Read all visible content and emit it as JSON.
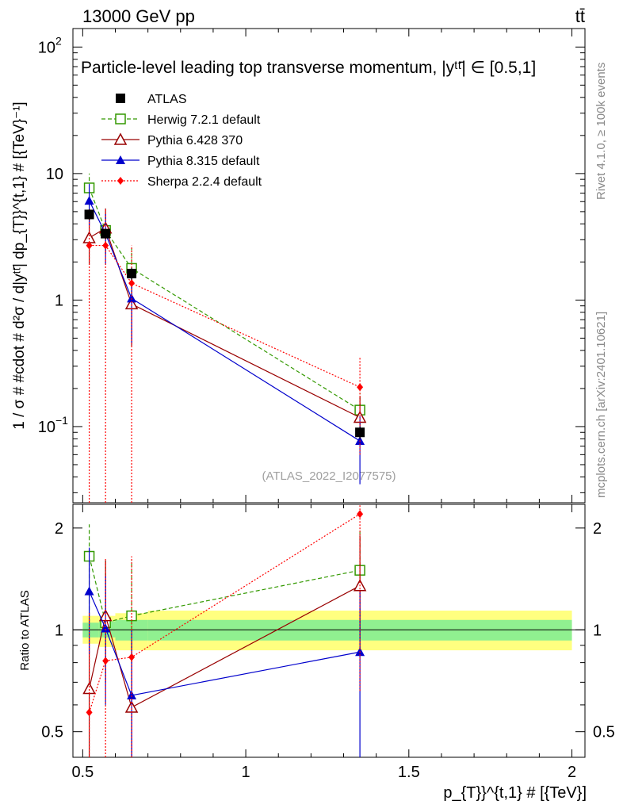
{
  "header": {
    "energy": "13000 GeV pp",
    "process": "tt̄"
  },
  "side": {
    "rivet": "Rivet 4.1.0, ≥ 100k events",
    "source": "mcplots.cern.ch [arXiv:2401.10621]"
  },
  "chart_data": {
    "type": "scatter",
    "title": "Particle-level leading top transverse momentum, |y^{tt̄}| ∈ [0.5,1]",
    "title_text": "Particle-level leading top transverse momentum, |yᵗᵗ̄| ∈ [0.5,1]",
    "watermark": "(ATLAS_2022_I2077575)",
    "xlabel": "p_{T}^{t,1} # [{TeV}]",
    "xlabel_text": "p_{T}}^{t,1} # [{TeV}]",
    "ylabel": "1 / σ # #cdot # d²σ / d|y^{tt̄}| dp_{T}^{t,1} # [{TeV}⁻¹]",
    "ylabel_text": "1 / σ # #cdot # d²σ / d|yᵗᵗ̄| dp_{T}}^{t,1} # [{TeV}⁻¹]",
    "ratio_ylabel": "Ratio to ATLAS",
    "xlim": [
      0.47,
      2.04
    ],
    "main_ylim": [
      0.025,
      140
    ],
    "main_yscale": "log",
    "ratio_ylim": [
      0.42,
      2.35
    ],
    "ratio_yscale": "log",
    "x_ticks": [
      {
        "value": 0.5,
        "label": "0.5"
      },
      {
        "value": 1,
        "label": "1"
      },
      {
        "value": 1.5,
        "label": "1.5"
      },
      {
        "value": 2,
        "label": "2"
      }
    ],
    "main_y_ticks": [
      {
        "value": 0.1,
        "label": "10",
        "exp": "−1"
      },
      {
        "value": 1,
        "label": "1",
        "exp": ""
      },
      {
        "value": 10,
        "label": "10",
        "exp": ""
      },
      {
        "value": 100,
        "label": "10",
        "exp": "2"
      }
    ],
    "ratio_y_ticks": [
      {
        "value": 0.5,
        "label": "0.5"
      },
      {
        "value": 1,
        "label": "1"
      },
      {
        "value": 2,
        "label": "2"
      }
    ],
    "bins": [
      [
        0.5,
        0.55
      ],
      [
        0.55,
        0.6
      ],
      [
        0.6,
        0.7
      ],
      [
        0.7,
        2.0
      ]
    ],
    "band_stat": [
      [
        0.95,
        1.05
      ],
      [
        0.95,
        1.06
      ],
      [
        0.93,
        1.07
      ],
      [
        0.93,
        1.07
      ]
    ],
    "band_total": [
      [
        0.91,
        1.1
      ],
      [
        0.89,
        1.1
      ],
      [
        0.87,
        1.12
      ],
      [
        0.87,
        1.14
      ]
    ],
    "series": [
      {
        "name": "ATLAS",
        "color": "#000000",
        "marker": "square-filled",
        "line": "none",
        "x": [
          0.52,
          0.57,
          0.65,
          1.35
        ],
        "y": [
          4.75,
          3.35,
          1.62,
          0.09
        ],
        "y_lo": [
          4.3,
          3.05,
          1.45,
          0.08
        ],
        "y_hi": [
          5.2,
          3.65,
          1.8,
          0.1
        ],
        "ratio": [
          1,
          1,
          1,
          1
        ],
        "ratio_lo": [
          1,
          1,
          1,
          1
        ],
        "ratio_hi": [
          1,
          1,
          1,
          1
        ]
      },
      {
        "name": "Herwig 7.2.1 default",
        "color": "#339900",
        "marker": "square-open",
        "line": "dashed",
        "x": [
          0.52,
          0.57,
          0.65,
          1.35
        ],
        "y": [
          7.7,
          3.55,
          1.78,
          0.135
        ],
        "y_lo": [
          4.9,
          2.4,
          1.1,
          0.09
        ],
        "y_hi": [
          10.0,
          4.9,
          2.6,
          0.185
        ],
        "ratio": [
          1.65,
          1.05,
          1.1,
          1.5
        ],
        "ratio_lo": [
          1.05,
          0.75,
          0.8,
          1.0
        ],
        "ratio_hi": [
          2.05,
          1.6,
          1.6,
          2.0
        ]
      },
      {
        "name": "Pythia 6.428 370",
        "color": "#990000",
        "marker": "triangle-open",
        "line": "solid",
        "x": [
          0.52,
          0.57,
          0.65,
          1.35
        ],
        "y": [
          3.1,
          3.7,
          0.93,
          0.118
        ],
        "y_lo": [
          1.9,
          2.3,
          0.43,
          0.075
        ],
        "y_hi": [
          4.5,
          5.3,
          1.5,
          0.175
        ],
        "ratio": [
          0.67,
          1.1,
          0.59,
          1.35
        ],
        "ratio_lo": [
          0.42,
          0.7,
          0.26,
          0.85
        ],
        "ratio_hi": [
          0.95,
          1.6,
          0.92,
          1.9
        ]
      },
      {
        "name": "Pythia 8.315 default",
        "color": "#0000cc",
        "marker": "triangle-filled",
        "line": "solid",
        "x": [
          0.52,
          0.57,
          0.65,
          1.35
        ],
        "y": [
          6.1,
          3.35,
          1.03,
          0.077
        ],
        "y_lo": [
          3.9,
          1.9,
          0.45,
          0.035
        ],
        "y_hi": [
          8.3,
          4.8,
          1.6,
          0.12
        ],
        "ratio": [
          1.3,
          1.01,
          0.64,
          0.86
        ],
        "ratio_lo": [
          0.85,
          0.6,
          0.28,
          0.3
        ],
        "ratio_hi": [
          1.75,
          1.45,
          1.0,
          1.3
        ]
      },
      {
        "name": "Sherpa 2.2.4 default",
        "color": "#ff0000",
        "marker": "diamond-filled",
        "line": "dotted",
        "x": [
          0.52,
          0.57,
          0.65,
          1.35
        ],
        "y": [
          2.7,
          2.7,
          1.36,
          0.205
        ],
        "y_lo": [
          0.01,
          0.01,
          0.01,
          0.06
        ],
        "y_hi": [
          5.3,
          5.3,
          2.7,
          0.35
        ],
        "ratio": [
          0.57,
          0.81,
          0.83,
          2.2
        ],
        "ratio_lo": [
          0.1,
          0.1,
          0.1,
          0.66
        ],
        "ratio_hi": [
          1.12,
          1.62,
          1.65,
          3.7
        ]
      }
    ]
  }
}
